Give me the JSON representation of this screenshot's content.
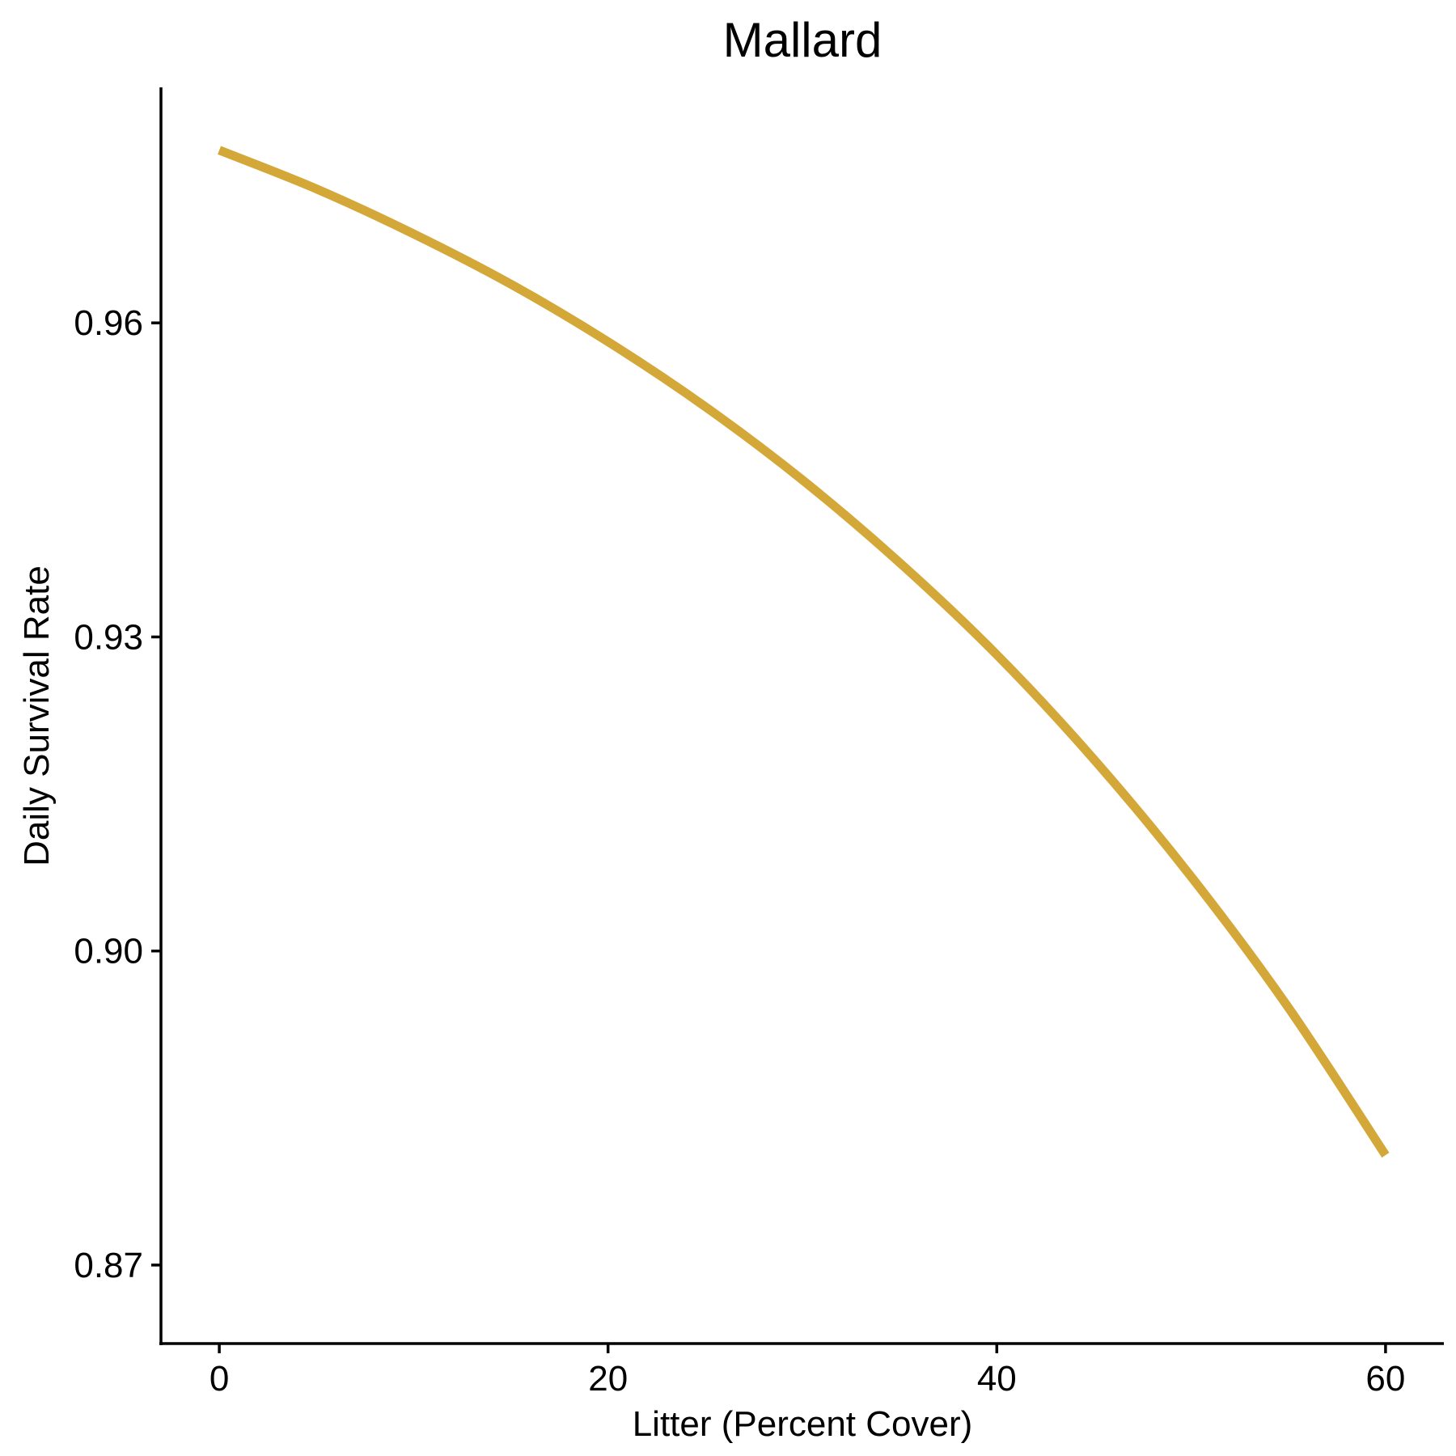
{
  "chart_data": {
    "type": "line",
    "title": "Mallard",
    "xlabel": "Litter (Percent Cover)",
    "ylabel": "Daily Survival Rate",
    "xlim": [
      -3,
      63
    ],
    "ylim": [
      0.8625,
      0.9825
    ],
    "xticks": [
      0,
      20,
      40,
      60
    ],
    "xtick_labels": [
      "0",
      "20",
      "40",
      "60"
    ],
    "yticks": [
      0.87,
      0.9,
      0.93,
      0.96
    ],
    "ytick_labels": [
      "0.87",
      "0.90",
      "0.93",
      "0.96"
    ],
    "grid": false,
    "legend": "none",
    "series": [
      {
        "color": "#D4A838",
        "x": [
          0,
          5,
          10,
          15,
          20,
          25,
          30,
          35,
          40,
          45,
          50,
          55,
          60
        ],
        "y": [
          0.9765,
          0.9728,
          0.9685,
          0.9637,
          0.9582,
          0.952,
          0.945,
          0.9371,
          0.9283,
          0.9183,
          0.9071,
          0.8946,
          0.8805
        ]
      }
    ]
  }
}
